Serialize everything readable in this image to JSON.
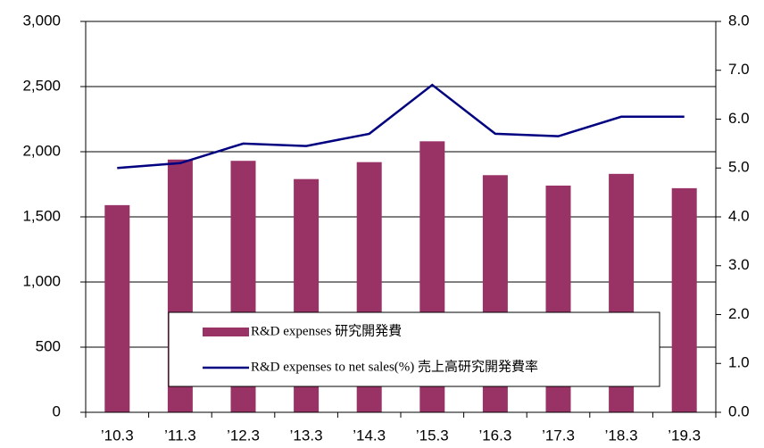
{
  "chart_data": {
    "type": "bar_line",
    "categories": [
      "’10.3",
      "’11.3",
      "’12.3",
      "’13.3",
      "’14.3",
      "’15.3",
      "’16.3",
      "’17.3",
      "’18.3",
      "’19.3"
    ],
    "series": [
      {
        "name": "R&D expenses 研究開発費",
        "type": "bar",
        "color": "#993366",
        "values": [
          1590,
          1940,
          1930,
          1790,
          1920,
          2080,
          1820,
          1740,
          1830,
          1720
        ]
      },
      {
        "name": "R&D expenses to net sales(%) 売上高研究開発費率",
        "type": "line",
        "axis": "y2",
        "color": "#000080",
        "values": [
          5.0,
          5.1,
          5.5,
          5.45,
          5.7,
          6.7,
          5.7,
          5.65,
          6.05,
          6.05
        ]
      }
    ],
    "ylim": [
      0,
      3000
    ],
    "yticks": [
      0,
      500,
      {
        "value": 1000,
        "label": "1,000"
      },
      {
        "value": 1500,
        "label": "1,500"
      },
      {
        "value": 2000,
        "label": "2,000"
      },
      {
        "value": 2500,
        "label": "2,500"
      },
      {
        "value": 3000,
        "label": "3,000"
      }
    ],
    "y2lim": [
      0,
      8
    ],
    "y2ticks": [
      {
        "value": 0,
        "label": "0.0"
      },
      {
        "value": 1,
        "label": "1.0"
      },
      {
        "value": 2,
        "label": "2.0"
      },
      {
        "value": 3,
        "label": "3.0"
      },
      {
        "value": 4,
        "label": "4.0"
      },
      {
        "value": 5,
        "label": "5.0"
      },
      {
        "value": 6,
        "label": "6.0"
      },
      {
        "value": 7,
        "label": "7.0"
      },
      {
        "value": 8,
        "label": "8.0"
      }
    ],
    "grid": true,
    "legend": "lower center"
  }
}
